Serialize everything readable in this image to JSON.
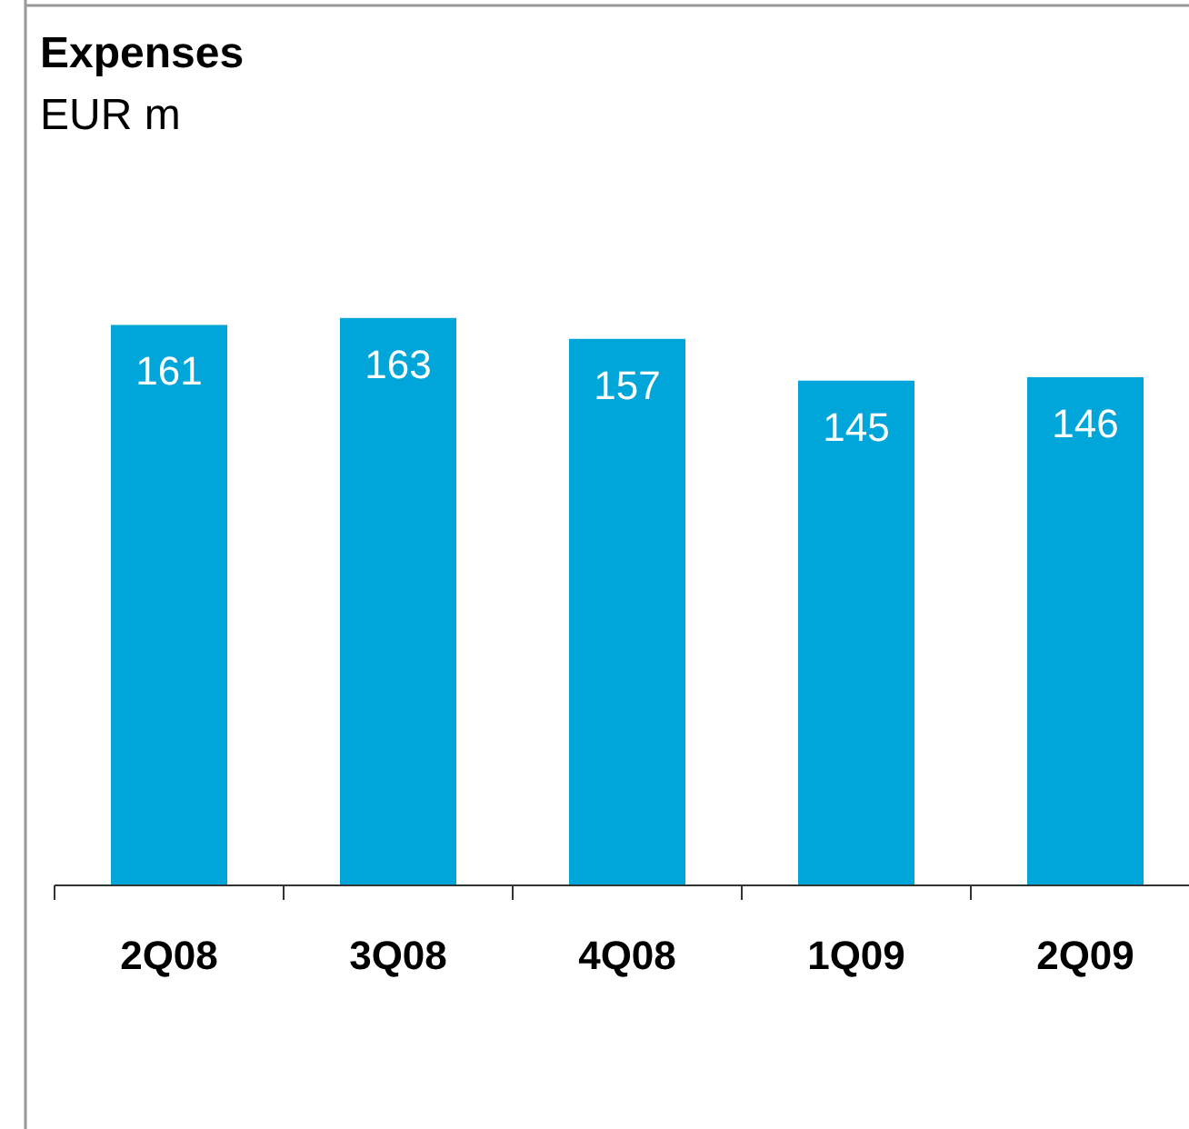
{
  "chart_data": {
    "type": "bar",
    "title": "Expenses",
    "subtitle": "EUR m",
    "categories": [
      "2Q08",
      "3Q08",
      "4Q08",
      "1Q09",
      "2Q09"
    ],
    "values": [
      161,
      163,
      157,
      145,
      146
    ],
    "color": "#00a5d9",
    "data_labels": true
  }
}
